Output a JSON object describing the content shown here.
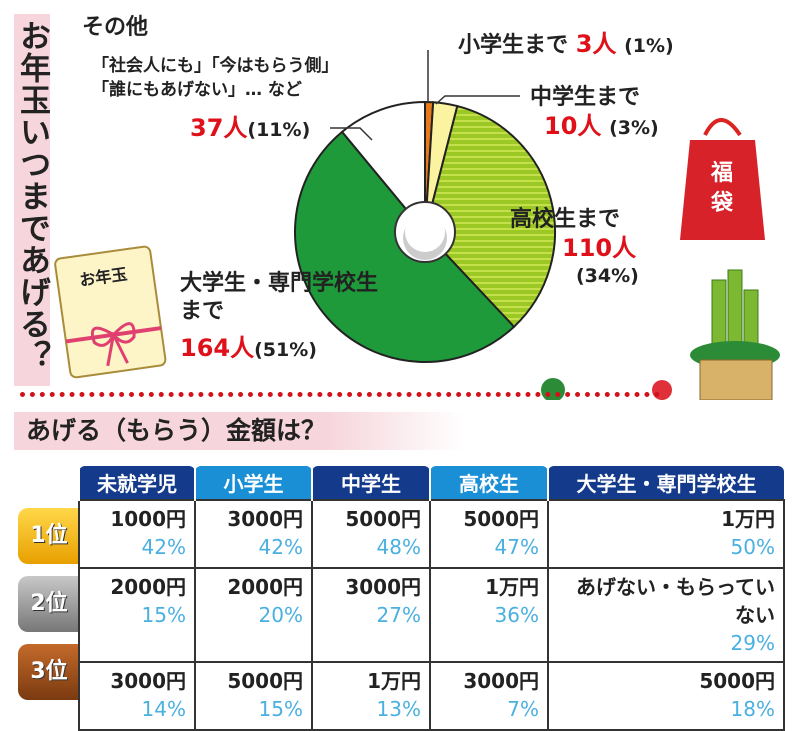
{
  "title": "お年玉いつまであげる？",
  "chart_data": {
    "type": "pie",
    "title": "お年玉いつまであげる？",
    "slices": [
      {
        "label": "小学生まで",
        "count": "3人",
        "percent": "(1%)",
        "value": 1,
        "color": "#e87a1e"
      },
      {
        "label": "中学生まで",
        "count": "10人",
        "percent": "(3%)",
        "value": 3,
        "color": "#fbf3a0"
      },
      {
        "label": "高校生まで",
        "count": "110人",
        "percent": "(34%)",
        "value": 34,
        "color": "#9cc825"
      },
      {
        "label": "大学生・専門学校生まで",
        "count": "164人",
        "percent": "(51%)",
        "value": 51,
        "color": "#1e9a3a"
      },
      {
        "label": "その他",
        "note1": "「社会人にも」「今はもらう側」",
        "note2": "「誰にもあげない」… など",
        "count": "37人",
        "percent": "(11%)",
        "value": 11,
        "color": "#ffffff"
      }
    ]
  },
  "amount": {
    "heading": "あげる（もらう）金額は？",
    "columns": [
      "未就学児",
      "小学生",
      "中学生",
      "高校生",
      "大学生・専門学校生"
    ],
    "ranks": [
      "1位",
      "2位",
      "3位"
    ],
    "rows": [
      [
        [
          "1000円",
          "42%"
        ],
        [
          "3000円",
          "42%"
        ],
        [
          "5000円",
          "48%"
        ],
        [
          "5000円",
          "47%"
        ],
        [
          "1万円",
          "50%"
        ]
      ],
      [
        [
          "2000円",
          "15%"
        ],
        [
          "2000円",
          "20%"
        ],
        [
          "3000円",
          "27%"
        ],
        [
          "1万円",
          "36%"
        ],
        [
          "あげない・もらっていない",
          "29%"
        ]
      ],
      [
        [
          "3000円",
          "14%"
        ],
        [
          "5000円",
          "15%"
        ],
        [
          "1万円",
          "13%"
        ],
        [
          "3000円",
          "7%"
        ],
        [
          "5000円",
          "18%"
        ]
      ]
    ]
  },
  "decor": {
    "envelope_text": "お年玉",
    "bag_text": "福袋"
  }
}
